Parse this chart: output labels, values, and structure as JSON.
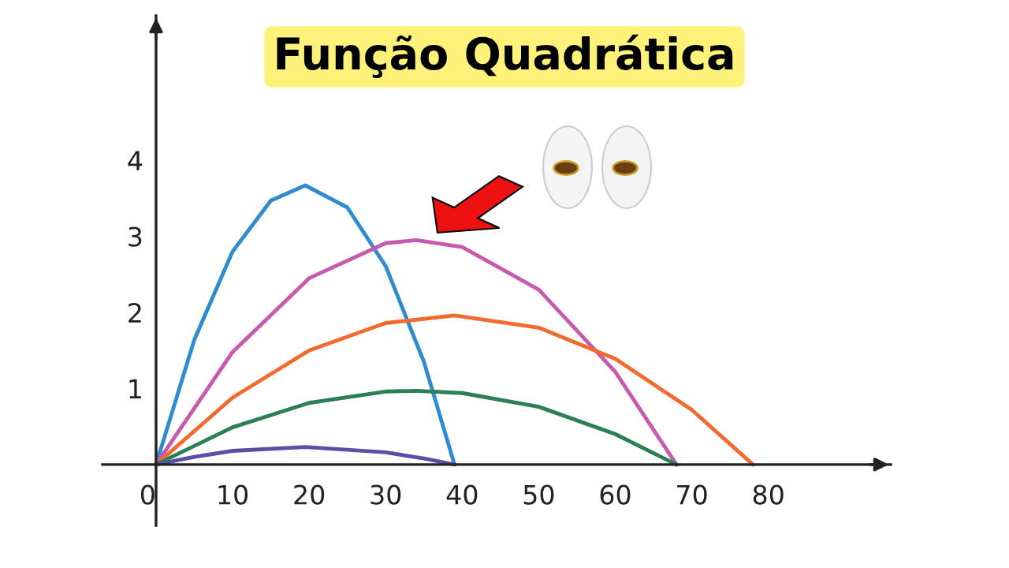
{
  "chart_data": {
    "type": "line",
    "title": "Função Quadrática",
    "series": [
      {
        "color": "#2e8bd0",
        "x": [
          0,
          5,
          10,
          15,
          19.5,
          25,
          30,
          35,
          39
        ],
        "values": [
          0,
          1.64,
          2.8,
          3.47,
          3.67,
          3.38,
          2.61,
          1.35,
          0
        ]
      },
      {
        "color": "#c75aad",
        "x": [
          0,
          10,
          20,
          30,
          34,
          40,
          50,
          60,
          68
        ],
        "values": [
          0,
          1.48,
          2.45,
          2.91,
          2.95,
          2.86,
          2.3,
          1.22,
          0
        ]
      },
      {
        "color": "#f26a2e",
        "x": [
          0,
          10,
          20,
          30,
          39,
          50,
          60,
          70,
          78
        ],
        "values": [
          0,
          0.88,
          1.5,
          1.86,
          1.96,
          1.8,
          1.39,
          0.72,
          0
        ]
      },
      {
        "color": "#2a7f55",
        "x": [
          0,
          10,
          20,
          30,
          34,
          40,
          50,
          60,
          68
        ],
        "values": [
          0,
          0.49,
          0.81,
          0.96,
          0.97,
          0.94,
          0.76,
          0.4,
          0
        ]
      },
      {
        "color": "#5a4fa8",
        "x": [
          0,
          5,
          10,
          19.5,
          30,
          35,
          39
        ],
        "values": [
          0,
          0.1,
          0.18,
          0.23,
          0.16,
          0.08,
          0
        ]
      }
    ],
    "xlim": [
      -7,
      96
    ],
    "ylim": [
      -0.8,
      5.9
    ],
    "xticks": [
      {
        "value": 0,
        "label": "0"
      },
      10,
      20,
      30,
      40,
      50,
      60,
      70,
      80
    ],
    "yticks": [
      1,
      2,
      3,
      4
    ],
    "grid": false,
    "legend": false,
    "marker": "none",
    "line_style": "solid"
  }
}
